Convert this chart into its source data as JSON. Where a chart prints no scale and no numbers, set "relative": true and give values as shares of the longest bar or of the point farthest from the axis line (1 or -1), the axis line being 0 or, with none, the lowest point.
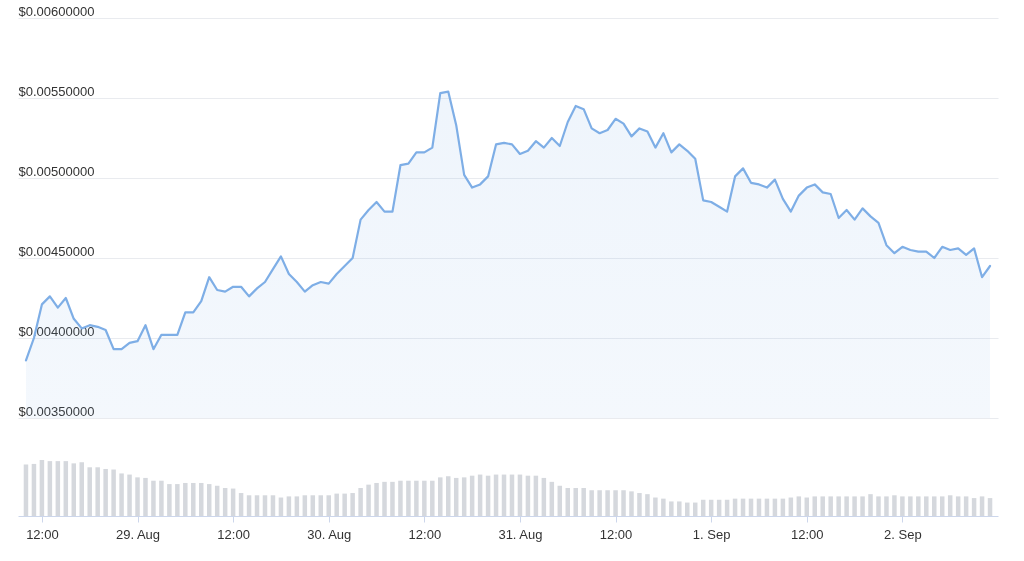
{
  "chart_data": [
    {
      "type": "area",
      "color": "#7eaee6",
      "grid": "y",
      "tick_labels": "y",
      "xlim": [
        "--08-28T09:00",
        "--09-02T12:00"
      ],
      "ylim": [
        0.0035,
        0.006
      ],
      "yticks": [
        {
          "value": 0.0035,
          "label": "$0.00350000"
        },
        {
          "value": 0.004,
          "label": "$0.00400000"
        },
        {
          "value": 0.0045,
          "label": "$0.00450000"
        },
        {
          "value": 0.005,
          "label": "$0.00500000"
        },
        {
          "value": 0.0055,
          "label": "$0.00550000"
        },
        {
          "value": 0.006,
          "label": "$0.00600000"
        }
      ],
      "x": [
        "--08-28T10:00",
        "--08-28T11:00",
        "--08-28T12:00",
        "--08-28T13:00",
        "--08-28T14:00",
        "--08-28T15:00",
        "--08-28T16:00",
        "--08-28T17:00",
        "--08-28T18:00",
        "--08-28T19:00",
        "--08-28T20:00",
        "--08-28T21:00",
        "--08-28T22:00",
        "--08-28T23:00",
        "--08-29T00:00",
        "--08-29T01:00",
        "--08-29T02:00",
        "--08-29T03:00",
        "--08-29T04:00",
        "--08-29T05:00",
        "--08-29T06:00",
        "--08-29T07:00",
        "--08-29T08:00",
        "--08-29T09:00",
        "--08-29T10:00",
        "--08-29T11:00",
        "--08-29T12:00",
        "--08-29T13:00",
        "--08-29T14:00",
        "--08-29T15:00",
        "--08-29T16:00",
        "--08-29T17:00",
        "--08-29T18:00",
        "--08-29T19:00",
        "--08-29T20:00",
        "--08-29T21:00",
        "--08-29T22:00",
        "--08-29T23:00",
        "--08-30T00:00",
        "--08-30T01:00",
        "--08-30T02:00",
        "--08-30T03:00",
        "--08-30T04:00",
        "--08-30T05:00",
        "--08-30T06:00",
        "--08-30T07:00",
        "--08-30T08:00",
        "--08-30T09:00",
        "--08-30T10:00",
        "--08-30T11:00",
        "--08-30T12:00",
        "--08-30T13:00",
        "--08-30T14:00",
        "--08-30T15:00",
        "--08-30T16:00",
        "--08-30T17:00",
        "--08-30T18:00",
        "--08-30T19:00",
        "--08-30T20:00",
        "--08-30T21:00",
        "--08-30T22:00",
        "--08-30T23:00",
        "--08-31T00:00",
        "--08-31T01:00",
        "--08-31T02:00",
        "--08-31T03:00",
        "--08-31T04:00",
        "--08-31T05:00",
        "--08-31T06:00",
        "--08-31T07:00",
        "--08-31T08:00",
        "--08-31T09:00",
        "--08-31T10:00",
        "--08-31T11:00",
        "--08-31T12:00",
        "--08-31T13:00",
        "--08-31T14:00",
        "--08-31T15:00",
        "--08-31T16:00",
        "--08-31T17:00",
        "--08-31T18:00",
        "--08-31T19:00",
        "--08-31T20:00",
        "--08-31T21:00",
        "--08-31T22:00",
        "--08-31T23:00",
        "--09-01T00:00",
        "--09-01T01:00",
        "--09-01T02:00",
        "--09-01T03:00",
        "--09-01T04:00",
        "--09-01T05:00",
        "--09-01T06:00",
        "--09-01T07:00",
        "--09-01T08:00",
        "--09-01T09:00",
        "--09-01T10:00",
        "--09-01T11:00",
        "--09-01T12:00",
        "--09-01T13:00",
        "--09-01T14:00",
        "--09-01T15:00",
        "--09-01T16:00",
        "--09-01T17:00",
        "--09-01T18:00",
        "--09-01T19:00",
        "--09-01T20:00",
        "--09-01T21:00",
        "--09-01T22:00",
        "--09-01T23:00",
        "--09-02T00:00",
        "--09-02T01:00",
        "--09-02T02:00",
        "--09-02T03:00",
        "--09-02T04:00",
        "--09-02T05:00",
        "--09-02T06:00",
        "--09-02T07:00",
        "--09-02T08:00",
        "--09-02T09:00",
        "--09-02T10:00",
        "--09-02T11:00"
      ],
      "values": [
        0.00386,
        0.004,
        0.00421,
        0.00426,
        0.00419,
        0.00425,
        0.00412,
        0.00406,
        0.00408,
        0.00407,
        0.00405,
        0.00393,
        0.00393,
        0.00397,
        0.00398,
        0.00408,
        0.00393,
        0.00402,
        0.00402,
        0.00402,
        0.00416,
        0.00416,
        0.00423,
        0.00438,
        0.0043,
        0.00429,
        0.00432,
        0.00432,
        0.00426,
        0.00431,
        0.00435,
        0.00443,
        0.00451,
        0.0044,
        0.00435,
        0.00429,
        0.00433,
        0.00435,
        0.00434,
        0.0044,
        0.00445,
        0.0045,
        0.00474,
        0.0048,
        0.00485,
        0.00479,
        0.00479,
        0.00508,
        0.00509,
        0.00516,
        0.00516,
        0.00519,
        0.00553,
        0.00554,
        0.00533,
        0.00502,
        0.00494,
        0.00496,
        0.00501,
        0.00521,
        0.00522,
        0.00521,
        0.00515,
        0.00517,
        0.00523,
        0.00519,
        0.00525,
        0.0052,
        0.00535,
        0.00545,
        0.00543,
        0.00531,
        0.00528,
        0.0053,
        0.00537,
        0.00534,
        0.00526,
        0.00531,
        0.00529,
        0.00519,
        0.00528,
        0.00516,
        0.00521,
        0.00517,
        0.00512,
        0.00486,
        0.00485,
        0.00482,
        0.00479,
        0.00501,
        0.00506,
        0.00497,
        0.00496,
        0.00494,
        0.00499,
        0.00487,
        0.00479,
        0.00489,
        0.00494,
        0.00496,
        0.00491,
        0.0049,
        0.00475,
        0.0048,
        0.00474,
        0.00481,
        0.00476,
        0.00472,
        0.00458,
        0.00453,
        0.00457,
        0.00455,
        0.00454,
        0.00454,
        0.0045,
        0.00457,
        0.00455,
        0.00456,
        0.00452,
        0.00456,
        0.00438,
        0.00445
      ]
    },
    {
      "type": "bar",
      "relative": true,
      "color": "#d5d8dd",
      "tick_labels": "x",
      "xlim": [
        "--08-28T09:00",
        "--09-02T12:00"
      ],
      "xticks": [
        {
          "value": "--08-28T12:00",
          "label": "12:00"
        },
        {
          "value": "--08-29",
          "label": "29. Aug"
        },
        {
          "value": "--08-29T12:00",
          "label": "12:00"
        },
        {
          "value": "--08-30",
          "label": "30. Aug"
        },
        {
          "value": "--08-30T12:00",
          "label": "12:00"
        },
        {
          "value": "--08-31",
          "label": "31. Aug"
        },
        {
          "value": "--08-31T12:00",
          "label": "12:00"
        },
        {
          "value": "--09-01",
          "label": "1. Sep"
        },
        {
          "value": "--09-01T12:00",
          "label": "12:00"
        },
        {
          "value": "--09-02",
          "label": "2. Sep"
        }
      ],
      "x": [
        "--08-28T10:00",
        "--08-28T11:00",
        "--08-28T12:00",
        "--08-28T13:00",
        "--08-28T14:00",
        "--08-28T15:00",
        "--08-28T16:00",
        "--08-28T17:00",
        "--08-28T18:00",
        "--08-28T19:00",
        "--08-28T20:00",
        "--08-28T21:00",
        "--08-28T22:00",
        "--08-28T23:00",
        "--08-29T00:00",
        "--08-29T01:00",
        "--08-29T02:00",
        "--08-29T03:00",
        "--08-29T04:00",
        "--08-29T05:00",
        "--08-29T06:00",
        "--08-29T07:00",
        "--08-29T08:00",
        "--08-29T09:00",
        "--08-29T10:00",
        "--08-29T11:00",
        "--08-29T12:00",
        "--08-29T13:00",
        "--08-29T14:00",
        "--08-29T15:00",
        "--08-29T16:00",
        "--08-29T17:00",
        "--08-29T18:00",
        "--08-29T19:00",
        "--08-29T20:00",
        "--08-29T21:00",
        "--08-29T22:00",
        "--08-29T23:00",
        "--08-30T00:00",
        "--08-30T01:00",
        "--08-30T02:00",
        "--08-30T03:00",
        "--08-30T04:00",
        "--08-30T05:00",
        "--08-30T06:00",
        "--08-30T07:00",
        "--08-30T08:00",
        "--08-30T09:00",
        "--08-30T10:00",
        "--08-30T11:00",
        "--08-30T12:00",
        "--08-30T13:00",
        "--08-30T14:00",
        "--08-30T15:00",
        "--08-30T16:00",
        "--08-30T17:00",
        "--08-30T18:00",
        "--08-30T19:00",
        "--08-30T20:00",
        "--08-30T21:00",
        "--08-30T22:00",
        "--08-30T23:00",
        "--08-31T00:00",
        "--08-31T01:00",
        "--08-31T02:00",
        "--08-31T03:00",
        "--08-31T04:00",
        "--08-31T05:00",
        "--08-31T06:00",
        "--08-31T07:00",
        "--08-31T08:00",
        "--08-31T09:00",
        "--08-31T10:00",
        "--08-31T11:00",
        "--08-31T12:00",
        "--08-31T13:00",
        "--08-31T14:00",
        "--08-31T15:00",
        "--08-31T16:00",
        "--08-31T17:00",
        "--08-31T18:00",
        "--08-31T19:00",
        "--08-31T20:00",
        "--08-31T21:00",
        "--08-31T22:00",
        "--08-31T23:00",
        "--09-01T00:00",
        "--09-01T01:00",
        "--09-01T02:00",
        "--09-01T03:00",
        "--09-01T04:00",
        "--09-01T05:00",
        "--09-01T06:00",
        "--09-01T07:00",
        "--09-01T08:00",
        "--09-01T09:00",
        "--09-01T10:00",
        "--09-01T11:00",
        "--09-01T12:00",
        "--09-01T13:00",
        "--09-01T14:00",
        "--09-01T15:00",
        "--09-01T16:00",
        "--09-01T17:00",
        "--09-01T18:00",
        "--09-01T19:00",
        "--09-01T20:00",
        "--09-01T21:00",
        "--09-01T22:00",
        "--09-01T23:00",
        "--09-02T00:00",
        "--09-02T01:00",
        "--09-02T02:00",
        "--09-02T03:00",
        "--09-02T04:00",
        "--09-02T05:00",
        "--09-02T06:00",
        "--09-02T07:00",
        "--09-02T08:00",
        "--09-02T09:00",
        "--09-02T10:00",
        "--09-02T11:00"
      ],
      "values": [
        0.92,
        0.93,
        1,
        0.98,
        0.98,
        0.98,
        0.94,
        0.96,
        0.87,
        0.87,
        0.84,
        0.83,
        0.76,
        0.74,
        0.69,
        0.68,
        0.63,
        0.63,
        0.57,
        0.57,
        0.59,
        0.59,
        0.59,
        0.57,
        0.54,
        0.5,
        0.49,
        0.41,
        0.37,
        0.37,
        0.37,
        0.37,
        0.33,
        0.35,
        0.35,
        0.37,
        0.37,
        0.37,
        0.37,
        0.4,
        0.4,
        0.41,
        0.5,
        0.56,
        0.59,
        0.61,
        0.61,
        0.63,
        0.63,
        0.63,
        0.63,
        0.63,
        0.69,
        0.71,
        0.68,
        0.69,
        0.72,
        0.74,
        0.72,
        0.74,
        0.74,
        0.74,
        0.74,
        0.72,
        0.72,
        0.68,
        0.61,
        0.54,
        0.5,
        0.5,
        0.5,
        0.46,
        0.46,
        0.46,
        0.46,
        0.46,
        0.44,
        0.41,
        0.39,
        0.33,
        0.31,
        0.26,
        0.26,
        0.24,
        0.24,
        0.29,
        0.29,
        0.29,
        0.29,
        0.31,
        0.31,
        0.31,
        0.31,
        0.31,
        0.31,
        0.31,
        0.33,
        0.35,
        0.33,
        0.35,
        0.35,
        0.35,
        0.35,
        0.35,
        0.35,
        0.35,
        0.39,
        0.35,
        0.35,
        0.37,
        0.35,
        0.35,
        0.35,
        0.35,
        0.35,
        0.35,
        0.37,
        0.35,
        0.35,
        0.32,
        0.35,
        0.32
      ]
    }
  ]
}
